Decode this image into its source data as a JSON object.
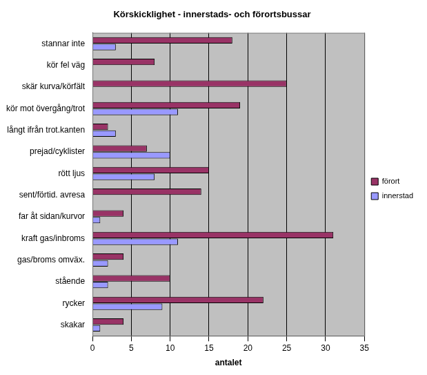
{
  "chart_data": {
    "type": "bar",
    "orientation": "horizontal",
    "title": "Körskicklighet - innerstads- och förortsbussar",
    "x_label": "antalet",
    "categories": [
      "stannar inte",
      "kör fel väg",
      "skär kurva/körfält",
      "kör mot övergång/trot",
      "långt ifrån trot.kanten",
      "prejad/cyklister",
      "rött ljus",
      "sent/förtid. avresa",
      "far åt sidan/kurvor",
      "kraft gas/inbroms",
      "gas/broms omväx.",
      "stående",
      "rycker",
      "skakar"
    ],
    "series": [
      {
        "name": "förort",
        "color": "#993366",
        "values": [
          18,
          8,
          25,
          19,
          2,
          7,
          15,
          14,
          4,
          31,
          4,
          10,
          22,
          4
        ]
      },
      {
        "name": "innerstad",
        "color": "#9999ff",
        "values": [
          3,
          null,
          null,
          11,
          3,
          10,
          8,
          null,
          1,
          11,
          2,
          2,
          9,
          1
        ]
      }
    ],
    "xlim": [
      0,
      35
    ],
    "xticks": [
      0,
      5,
      10,
      15,
      20,
      25,
      30,
      35
    ],
    "grid": true,
    "legend": "right"
  }
}
